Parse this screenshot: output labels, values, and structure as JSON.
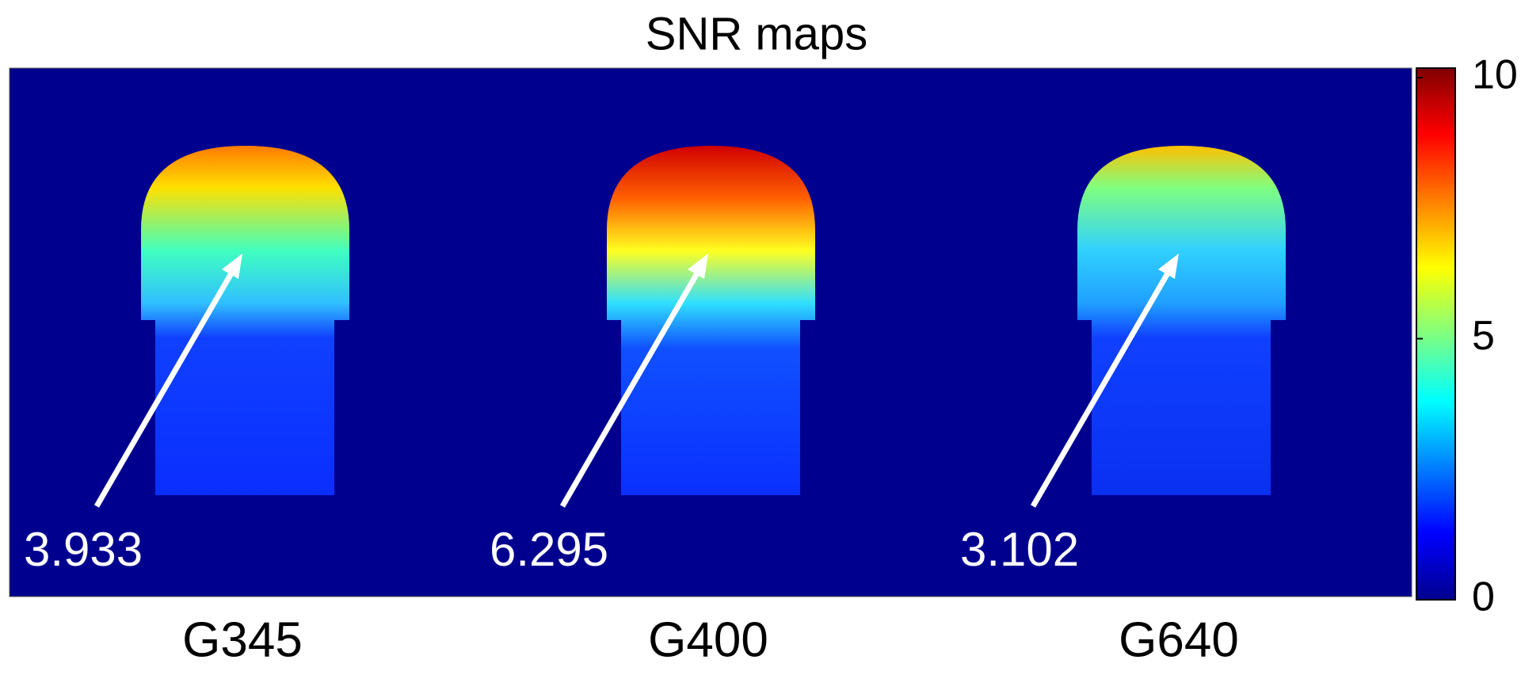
{
  "title": "SNR maps",
  "panels": [
    {
      "label": "G345",
      "annotation": "3.933"
    },
    {
      "label": "G400",
      "annotation": "6.295"
    },
    {
      "label": "G640",
      "annotation": "3.102"
    }
  ],
  "colorbar": {
    "lim": [
      0,
      10
    ],
    "ticks": [
      0,
      5,
      10
    ]
  }
}
